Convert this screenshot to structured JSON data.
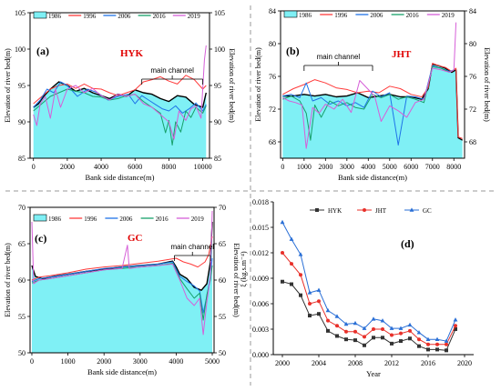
{
  "chart_data": [
    {
      "id": "a",
      "panel_label": "(a)",
      "site": "HYK",
      "type": "area",
      "xlabel": "Bank side distance(m)",
      "ylabel": "Elevation of river bed(m)",
      "ylabel_right": "Elevation of river bed(m)",
      "xlim": [
        -200,
        10400
      ],
      "ylim": [
        85,
        105
      ],
      "xticks": [
        0,
        2000,
        4000,
        6000,
        8000,
        10000
      ],
      "yticks": [
        85,
        90,
        95,
        100,
        105
      ],
      "annotation": "main channel",
      "annotation_range": [
        6400,
        10000
      ],
      "legend": [
        "1986",
        "1996",
        "2006",
        "2016",
        "2019"
      ],
      "series": [
        {
          "name": "1986",
          "style": "fill",
          "x": [
            0,
            300,
            600,
            1000,
            1500,
            2000,
            2500,
            3000,
            3500,
            4000,
            4500,
            5000,
            5500,
            6000,
            6500,
            7000,
            7500,
            8000,
            8500,
            9000,
            9500,
            10000,
            10200
          ],
          "y": [
            92,
            92.5,
            93.5,
            94.5,
            95.5,
            95,
            94.2,
            94.6,
            94,
            93.6,
            93.2,
            93.8,
            93.5,
            94.4,
            94,
            93.8,
            93.2,
            92.8,
            93.6,
            93.4,
            92.4,
            92,
            94
          ]
        },
        {
          "name": "1996",
          "x": [
            0,
            500,
            1000,
            1500,
            2000,
            2500,
            3000,
            3500,
            4000,
            4500,
            5000,
            5500,
            6000,
            6500,
            7000,
            7500,
            8000,
            8500,
            9000,
            9500,
            10000,
            10200
          ],
          "y": [
            92.5,
            93.5,
            94.5,
            95,
            95.2,
            94.6,
            95.2,
            94.6,
            94.5,
            94,
            93.6,
            94,
            94.4,
            95.5,
            95.8,
            96.2,
            95.6,
            95.2,
            96.4,
            95.8,
            94.5,
            95
          ]
        },
        {
          "name": "2006",
          "x": [
            0,
            400,
            800,
            1200,
            1600,
            2000,
            2600,
            3200,
            3800,
            4400,
            5000,
            5600,
            6000,
            6400,
            6800,
            7200,
            7600,
            8000,
            8400,
            8800,
            9200,
            9600,
            10000,
            10200
          ],
          "y": [
            92,
            93,
            94.5,
            94,
            95.5,
            95,
            93.5,
            94.5,
            94,
            93,
            93.5,
            93.8,
            92.5,
            93.6,
            93,
            92.4,
            91.8,
            91.5,
            92.2,
            91.2,
            91.8,
            92.6,
            91.5,
            92.4
          ]
        },
        {
          "name": "2016",
          "x": [
            0,
            500,
            1000,
            1500,
            2000,
            2500,
            3000,
            3500,
            4000,
            4500,
            5000,
            5500,
            6000,
            6500,
            7000,
            7500,
            7800,
            8000,
            8200,
            8400,
            8700,
            9000,
            9300,
            9600,
            10000,
            10200
          ],
          "y": [
            91.5,
            92.5,
            93.5,
            94,
            94.5,
            94.2,
            94,
            93.5,
            93.4,
            93,
            93.2,
            93.6,
            93.8,
            92.8,
            92,
            91.2,
            88.5,
            90.2,
            86.8,
            90,
            88.6,
            91.5,
            90.6,
            92,
            91.2,
            92.2
          ]
        },
        {
          "name": "2019",
          "x": [
            0,
            200,
            400,
            700,
            1000,
            1300,
            1600,
            2000,
            2500,
            3000,
            3500,
            4000,
            4500,
            5000,
            5500,
            6000,
            6500,
            7000,
            7500,
            8000,
            8300,
            8600,
            9000,
            9300,
            9600,
            9900,
            10100,
            10200
          ],
          "y": [
            91,
            89.5,
            92.5,
            93.5,
            90.5,
            94.5,
            92,
            94.5,
            95,
            94,
            94.6,
            93.6,
            93,
            93.8,
            93.5,
            93.8,
            92.5,
            92,
            91,
            90,
            87.6,
            91.5,
            90.2,
            91.8,
            92.2,
            90.5,
            98.5,
            100.5
          ]
        }
      ]
    },
    {
      "id": "b",
      "panel_label": "(b)",
      "site": "JHT",
      "type": "area",
      "xlabel": "Bank side distance(m)",
      "ylabel": "Elevation of river bed(m)",
      "ylabel_right": "Elevation of river bed(m)",
      "xlim": [
        -100,
        8500
      ],
      "ylim": [
        66,
        84
      ],
      "xticks": [
        0,
        1000,
        2000,
        3000,
        4000,
        5000,
        6000,
        7000,
        8000
      ],
      "yticks": [
        68,
        72,
        76,
        80,
        84
      ],
      "annotation": "main channel",
      "annotation_range": [
        1000,
        4200
      ],
      "legend": [
        "1986",
        "1996",
        "2006",
        "2016",
        "2019"
      ],
      "series": [
        {
          "name": "1986",
          "style": "fill",
          "x": [
            0,
            500,
            1000,
            1500,
            2000,
            2500,
            3000,
            3500,
            4000,
            4500,
            5000,
            5500,
            6000,
            6500,
            6800,
            7000,
            7300,
            7600,
            7900,
            8100,
            8200,
            8400
          ],
          "y": [
            73.6,
            73.6,
            73.8,
            73.6,
            73.8,
            73.5,
            73.6,
            74,
            73.4,
            73.6,
            73.8,
            73.5,
            73.5,
            73.2,
            74.5,
            77.5,
            77.3,
            77,
            76.5,
            76.8,
            68.5,
            68.2
          ]
        },
        {
          "name": "1996",
          "x": [
            0,
            500,
            1000,
            1500,
            2000,
            2500,
            3000,
            3500,
            4000,
            4500,
            5000,
            5500,
            6000,
            6500,
            6800,
            7000,
            7300,
            7600,
            7900,
            8100,
            8200,
            8400
          ],
          "y": [
            73.8,
            74.5,
            75,
            75.6,
            75.2,
            74.6,
            74.4,
            74,
            74.2,
            74,
            74.8,
            74.5,
            73.8,
            73.5,
            74.6,
            77.6,
            77.3,
            77.1,
            76.6,
            77,
            68.6,
            68.4
          ]
        },
        {
          "name": "2006",
          "x": [
            0,
            400,
            800,
            1100,
            1400,
            1800,
            2200,
            2600,
            3000,
            3400,
            3800,
            4200,
            4600,
            5000,
            5400,
            5800,
            6200,
            6600,
            7000,
            7400,
            7800,
            8000
          ],
          "y": [
            73.6,
            73.8,
            73.4,
            75.2,
            73,
            73.4,
            72.6,
            73,
            72.4,
            72.8,
            72.2,
            74.2,
            73.5,
            74,
            67.6,
            73.6,
            73.5,
            73.2,
            77.3,
            77,
            76.6,
            76.8
          ]
        },
        {
          "name": "2016",
          "x": [
            0,
            400,
            800,
            1100,
            1300,
            1500,
            1800,
            2200,
            2600,
            3000,
            3400,
            3800,
            4200,
            4600,
            5000,
            5400,
            5800,
            6200,
            6600,
            7000,
            7400,
            7800,
            8000
          ],
          "y": [
            73.2,
            73.6,
            73,
            71.5,
            68.2,
            72.5,
            71,
            73,
            72.4,
            72.8,
            72.2,
            72,
            73.8,
            73.4,
            73.8,
            73.2,
            73.5,
            73.2,
            72.8,
            77.2,
            77,
            76.5,
            76.8
          ]
        },
        {
          "name": "2019",
          "x": [
            0,
            300,
            600,
            900,
            1100,
            1400,
            1700,
            2000,
            2400,
            2800,
            3200,
            3600,
            4000,
            4300,
            4600,
            5000,
            5400,
            5800,
            6200,
            6600,
            7000,
            7400,
            7800,
            8000,
            8100
          ],
          "y": [
            73.4,
            73,
            72.8,
            72.5,
            67.2,
            72.2,
            71.5,
            72.6,
            72,
            73.2,
            71.6,
            75.5,
            74.4,
            73.6,
            70.5,
            72.4,
            71.8,
            71,
            72.8,
            73.2,
            77,
            76.8,
            76.5,
            76.8,
            82.6
          ]
        }
      ]
    },
    {
      "id": "c",
      "panel_label": "(c)",
      "site": "GC",
      "type": "area",
      "xlabel": "Bank side distance(m)",
      "ylabel": "Elevation of river bed(m)",
      "ylabel_right": "Elevation of river bed(m)",
      "xlim": [
        -50,
        5050
      ],
      "ylim": [
        50,
        70
      ],
      "xticks": [
        0,
        1000,
        2000,
        3000,
        4000,
        5000
      ],
      "yticks": [
        50,
        55,
        60,
        65,
        70
      ],
      "annotation": "main channel",
      "annotation_range": [
        3950,
        4950
      ],
      "legend": [
        "1986",
        "1996",
        "2006",
        "2016",
        "2019"
      ],
      "series": [
        {
          "name": "1986",
          "style": "fill",
          "x": [
            0,
            100,
            300,
            600,
            1000,
            1500,
            2000,
            2500,
            3000,
            3500,
            3900,
            4000,
            4100,
            4300,
            4500,
            4700,
            4850,
            4950,
            5000
          ],
          "y": [
            62,
            60.5,
            60.2,
            60.5,
            60.8,
            61.2,
            61.5,
            61.8,
            62,
            62.2,
            62.6,
            61.8,
            60.8,
            60.2,
            59,
            58.6,
            59.5,
            62.5,
            68
          ]
        },
        {
          "name": "1996",
          "x": [
            0,
            200,
            500,
            1000,
            1500,
            2000,
            2500,
            3000,
            3500,
            4000,
            4200,
            4400,
            4600,
            4800,
            4900,
            5000
          ],
          "y": [
            60,
            60.4,
            60.6,
            61,
            61.5,
            61.8,
            62,
            62.3,
            62.6,
            63,
            62.5,
            62.2,
            61.8,
            62.5,
            63.5,
            66
          ]
        },
        {
          "name": "2006",
          "x": [
            0,
            200,
            500,
            1000,
            1500,
            2000,
            2500,
            3000,
            3500,
            3900,
            4100,
            4300,
            4500,
            4650,
            4750,
            4850,
            4950,
            5000
          ],
          "y": [
            59.8,
            60.2,
            60.4,
            60.8,
            61.2,
            61.6,
            61.8,
            62,
            62.2,
            62.5,
            60.5,
            59.8,
            59.2,
            58.5,
            55.5,
            57.8,
            60.5,
            63
          ]
        },
        {
          "name": "2016",
          "x": [
            0,
            200,
            500,
            1000,
            1500,
            2000,
            2500,
            3000,
            3500,
            3900,
            4100,
            4300,
            4500,
            4650,
            4750,
            4850,
            4950,
            5000
          ],
          "y": [
            59.6,
            60,
            60.2,
            60.6,
            61,
            61.4,
            61.6,
            61.8,
            62,
            62.3,
            60.2,
            58.8,
            57.5,
            58.2,
            54.5,
            58,
            60,
            62
          ]
        },
        {
          "name": "2019",
          "x": [
            0,
            50,
            200,
            500,
            1000,
            1500,
            2000,
            2500,
            2650,
            2700,
            3000,
            3500,
            3900,
            4100,
            4300,
            4500,
            4650,
            4750,
            4850,
            4950,
            5000
          ],
          "y": [
            68,
            59.5,
            60,
            60.2,
            60.6,
            61,
            61.4,
            61.6,
            64.8,
            61.6,
            61.8,
            62,
            62.2,
            60,
            57.5,
            56.5,
            57.5,
            52.5,
            57,
            60.5,
            69.5
          ]
        }
      ]
    },
    {
      "id": "d",
      "panel_label": "(d)",
      "type": "line",
      "xlabel": "Year",
      "ylabel": "ξ (kg.s.m⁻⁴)",
      "xlim": [
        1999,
        2021
      ],
      "ylim": [
        0,
        0.018
      ],
      "xticks": [
        2000,
        2004,
        2008,
        2012,
        2016,
        2020
      ],
      "yticks": [
        0.0,
        0.003,
        0.006,
        0.009,
        0.012,
        0.015,
        0.018
      ],
      "x": [
        2000,
        2001,
        2002,
        2003,
        2004,
        2005,
        2006,
        2007,
        2008,
        2009,
        2010,
        2011,
        2012,
        2013,
        2014,
        2015,
        2016,
        2017,
        2018,
        2019
      ],
      "series": [
        {
          "name": "HYK",
          "color": "#333333",
          "marker": "square",
          "values": [
            0.0086,
            0.0083,
            0.007,
            0.0046,
            0.0048,
            0.0028,
            0.0022,
            0.0018,
            0.0017,
            0.0011,
            0.002,
            0.002,
            0.0013,
            0.0016,
            0.0019,
            0.001,
            0.0006,
            0.0006,
            0.0005,
            0.003
          ]
        },
        {
          "name": "JHT",
          "color": "#e8302a",
          "marker": "circle",
          "values": [
            0.012,
            0.0107,
            0.0094,
            0.006,
            0.0063,
            0.004,
            0.0034,
            0.0027,
            0.0027,
            0.0021,
            0.003,
            0.003,
            0.0023,
            0.0025,
            0.0028,
            0.0018,
            0.0012,
            0.0012,
            0.0012,
            0.0034
          ]
        },
        {
          "name": "GC",
          "color": "#2a6fd6",
          "marker": "triangle",
          "values": [
            0.0156,
            0.0136,
            0.0118,
            0.0073,
            0.0076,
            0.0052,
            0.0045,
            0.0036,
            0.0037,
            0.0031,
            0.0042,
            0.004,
            0.0031,
            0.0031,
            0.0035,
            0.0026,
            0.0018,
            0.0018,
            0.0016,
            0.0041
          ]
        }
      ]
    }
  ],
  "colors": {
    "1986_fill": "#7ff0f5",
    "1996": "#ff3b3b",
    "2006": "#1f74e8",
    "2016": "#17a06a",
    "2019": "#d65fd8"
  }
}
